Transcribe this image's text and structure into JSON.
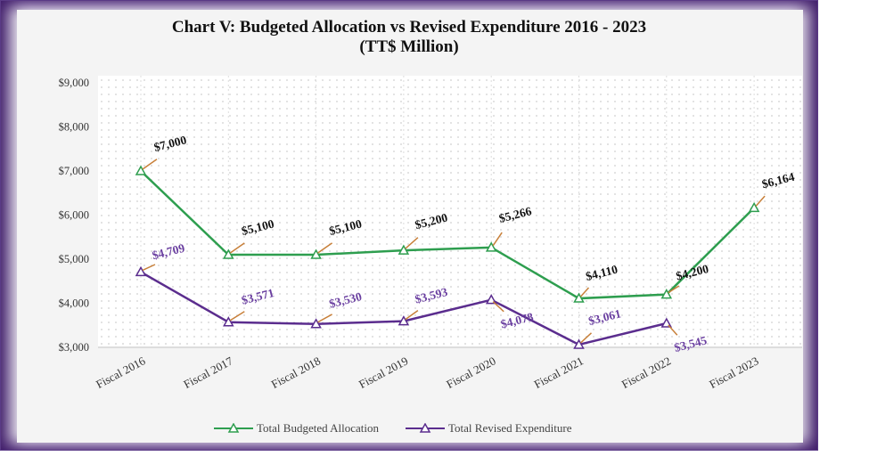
{
  "chart_data": {
    "type": "line",
    "title": "Chart V: Budgeted Allocation vs Revised Expenditure 2016 - 2023",
    "subtitle": "(TT$ Million)",
    "categories": [
      "Fiscal 2016",
      "Fiscal 2017",
      "Fiscal 2018",
      "Fiscal 2019",
      "Fiscal 2020",
      "Fiscal 2021",
      "Fiscal 2022",
      "Fiscal 2023"
    ],
    "y_ticks": [
      "$3,000",
      "$4,000",
      "$5,000",
      "$6,000",
      "$7,000",
      "$8,000",
      "$9,000"
    ],
    "ylim": [
      3000,
      9000
    ],
    "grid": "vertical dotted lines, dotted background",
    "legend_position": "bottom",
    "series": [
      {
        "name": "Total Budgeted Allocation",
        "color": "#2e9e4f",
        "marker": "triangle-open",
        "values": [
          7000,
          5100,
          5100,
          5200,
          5266,
          4110,
          4200,
          6164
        ],
        "labels": [
          "$7,000",
          "$5,100",
          "$5,100",
          "$5,200",
          "$5,266",
          "$4,110",
          "$4,200",
          "$6,164"
        ]
      },
      {
        "name": "Total Revised Expenditure",
        "color": "#5b2d8e",
        "marker": "triangle-open",
        "values": [
          4709,
          3571,
          3530,
          3593,
          4078,
          3061,
          3545,
          null
        ],
        "labels": [
          "$4,709",
          "$3,571",
          "$3,530",
          "$3,593",
          "$4,078",
          "$3,061",
          "$3,545",
          ""
        ]
      }
    ]
  }
}
